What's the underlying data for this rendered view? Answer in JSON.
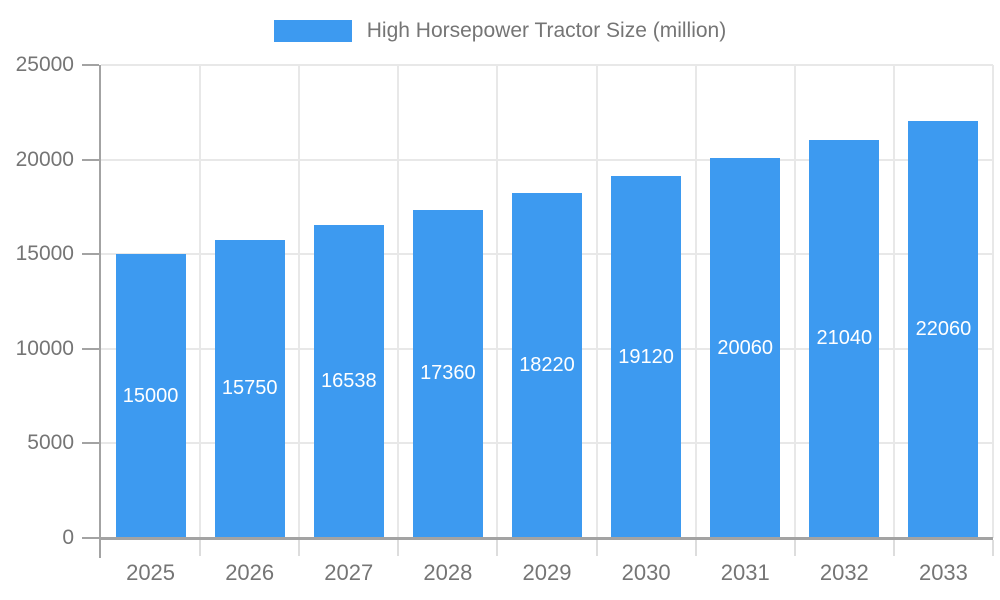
{
  "legend": {
    "label": "High Horsepower Tractor Size (million)"
  },
  "chart_data": {
    "type": "bar",
    "title": "High Horsepower Tractor Size (million)",
    "categories": [
      "2025",
      "2026",
      "2027",
      "2028",
      "2029",
      "2030",
      "2031",
      "2032",
      "2033"
    ],
    "values": [
      15000,
      15750,
      16538,
      17360,
      18220,
      19120,
      20060,
      21040,
      22060
    ],
    "series": [
      {
        "name": "High Horsepower Tractor Size (million)",
        "values": [
          15000,
          15750,
          16538,
          17360,
          18220,
          19120,
          20060,
          21040,
          22060
        ]
      }
    ],
    "bar_labels": [
      "15000",
      "15750",
      "16538",
      "17360",
      "18220",
      "19120",
      "20060",
      "21040",
      "22060"
    ],
    "xlabel": "",
    "ylabel": "",
    "ylim": [
      0,
      25000
    ],
    "yticks": [
      0,
      5000,
      10000,
      15000,
      20000,
      25000
    ],
    "grid": true,
    "legend_position": "top-center",
    "bar_label_position": "center-inside"
  },
  "colors": {
    "bar": "#3D9AF0",
    "axis_line": "#A3A3A3",
    "y_tick": "#A3A3A3",
    "x_tick": "#DDDDDD",
    "grid_line": "#E8E8E8",
    "axis_text": "#757575",
    "legend_text": "#757575",
    "bar_label_text": "#FFFFFF",
    "background": "#FFFFFF"
  }
}
